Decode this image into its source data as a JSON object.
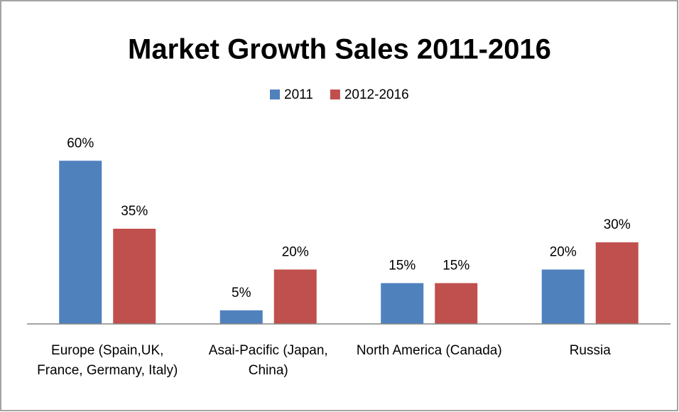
{
  "chart_data": {
    "type": "bar",
    "title": "Market Growth Sales 2011-2016",
    "categories": [
      "Europe (Spain,UK, France, Germany, Italy)",
      "Asai-Pacific (Japan, China)",
      "North America (Canada)",
      "Russia"
    ],
    "series": [
      {
        "name": "2011",
        "color": "#4f81bd",
        "values": [
          60,
          5,
          15,
          20
        ],
        "value_labels": [
          "60%",
          "5%",
          "15%",
          "20%"
        ]
      },
      {
        "name": "2012-2016",
        "color": "#c0504d",
        "values": [
          35,
          20,
          15,
          30
        ],
        "value_labels": [
          "35%",
          "20%",
          "15%",
          "30%"
        ]
      }
    ],
    "ylim": [
      0,
      70
    ],
    "legend": "top"
  }
}
